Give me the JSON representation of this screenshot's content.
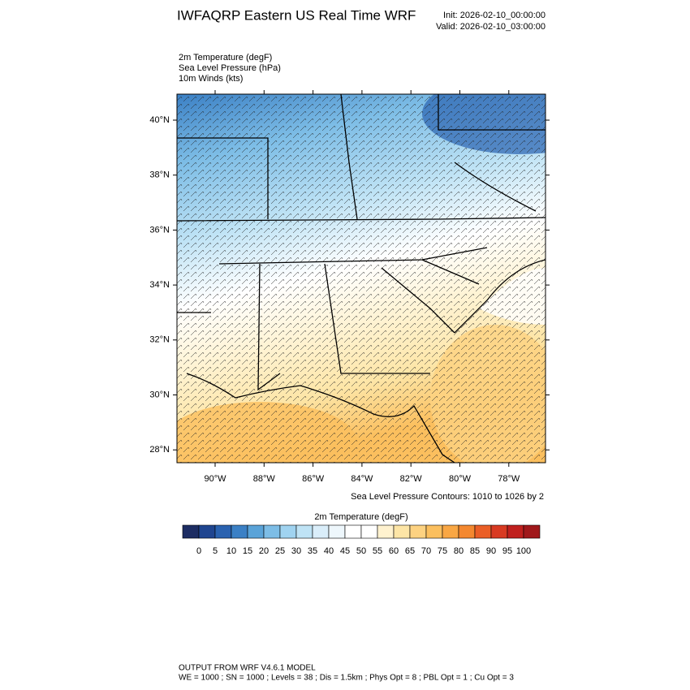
{
  "header": {
    "title": "IWFAQRP Eastern US Real Time WRF",
    "init": "Init: 2026-02-10_00:00:00",
    "valid": "Valid: 2026-02-10_03:00:00"
  },
  "fields": [
    "2m Temperature   (degF)",
    "Sea Level Pressure   (hPa)",
    "10m Winds   (kts)"
  ],
  "map": {
    "lat_labels": [
      "40°N",
      "38°N",
      "36°N",
      "34°N",
      "32°N",
      "30°N",
      "28°N"
    ],
    "lon_labels": [
      "90°W",
      "88°W",
      "86°W",
      "84°W",
      "82°W",
      "80°W",
      "78°W"
    ],
    "contour_note": "Sea Level Pressure Contours: 1010 to 1026 by 2"
  },
  "colorbar": {
    "title": "2m Temperature  (degF)",
    "labels": [
      0,
      5,
      10,
      15,
      20,
      25,
      30,
      35,
      40,
      45,
      50,
      55,
      60,
      65,
      70,
      75,
      80,
      85,
      90,
      95,
      100
    ],
    "colors": [
      "#1d2d63",
      "#1f4590",
      "#2a62b0",
      "#3b80c5",
      "#5aa3d8",
      "#7dbde6",
      "#a0d3f0",
      "#bfe3f5",
      "#daeefa",
      "#eef7fc",
      "#ffffff",
      "#ffffff",
      "#fff2cf",
      "#fde5a6",
      "#fdd281",
      "#fbbf5e",
      "#f9a744",
      "#f4882f",
      "#ea5e26",
      "#d83a22",
      "#c0201e",
      "#a0181b"
    ]
  },
  "footer": [
    "OUTPUT FROM WRF V4.6.1 MODEL",
    "WE = 1000 ; SN = 1000 ; Levels = 38 ; Dis = 1.5km ; Phys Opt = 8 ; PBL Opt = 1 ; Cu Opt = 3"
  ]
}
